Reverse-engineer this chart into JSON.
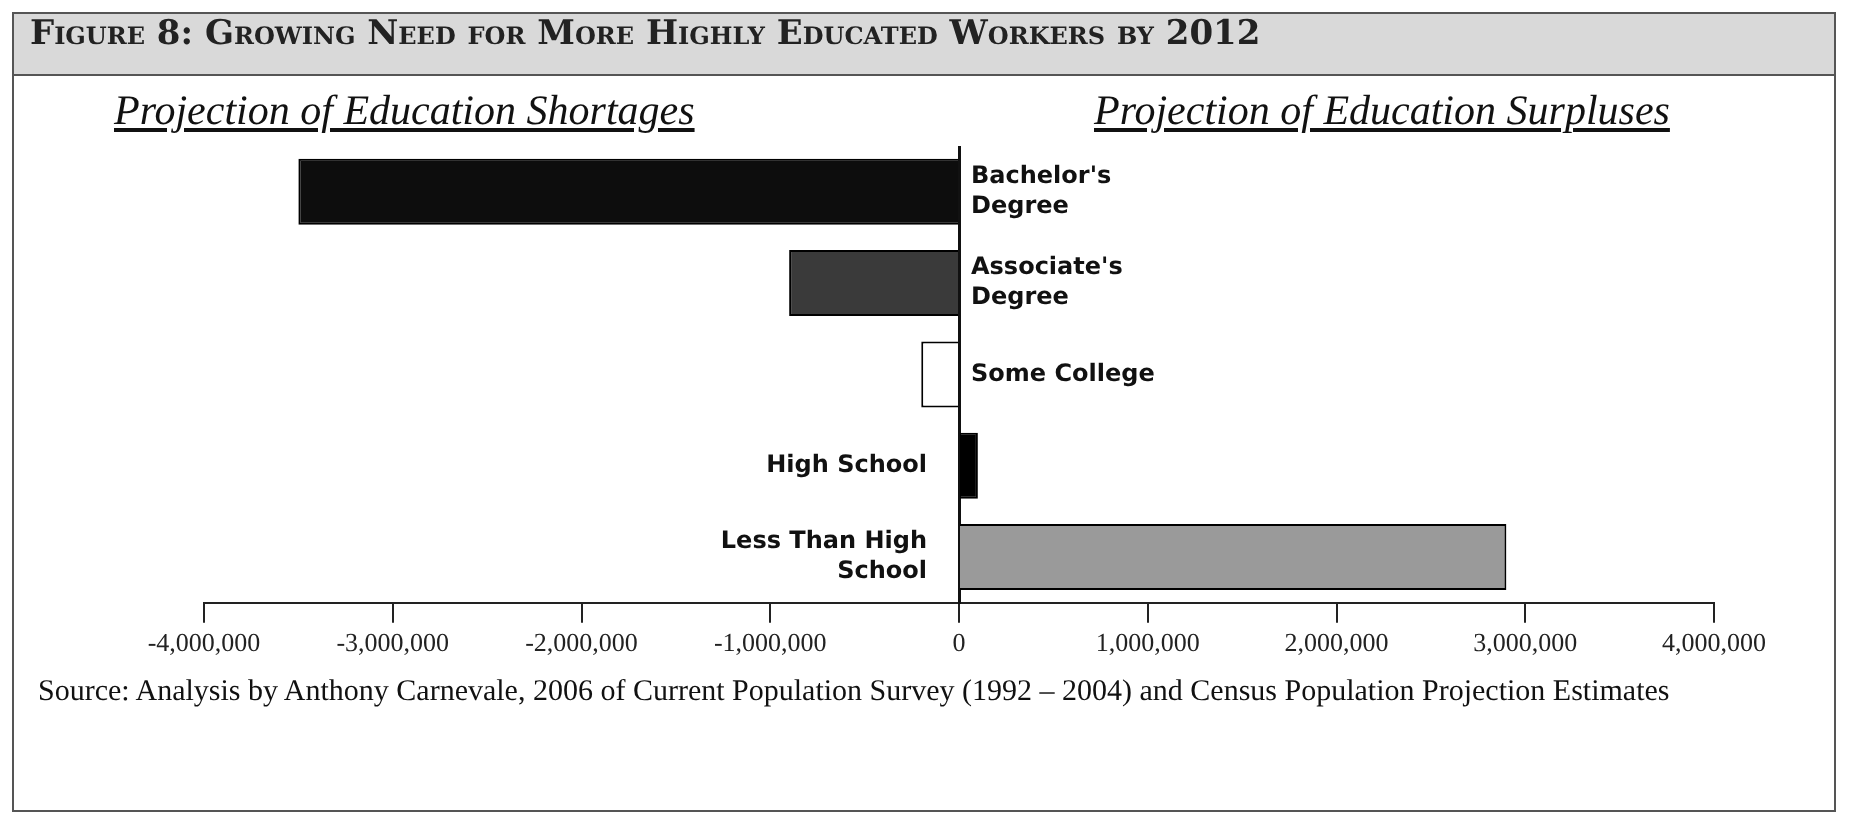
{
  "chart_data": {
    "type": "bar",
    "orientation": "horizontal",
    "title": "Figure 8: Growing Need for More Highly Educated Workers by 2012",
    "categories": [
      "Bachelor's Degree",
      "Associate's Degree",
      "Some College",
      "High School",
      "Less Than High School"
    ],
    "values": [
      -3500000,
      -900000,
      -200000,
      100000,
      2900000
    ],
    "colors": [
      "#0d0d0d",
      "#3a3a3a",
      "#ffffff",
      "#000000",
      "#9a9a9a"
    ],
    "xlim": [
      -4000000,
      4000000
    ],
    "xticks": [
      {
        "value": -4000000,
        "label": "-4,000,000"
      },
      {
        "value": -3000000,
        "label": "-3,000,000"
      },
      {
        "value": -2000000,
        "label": "-2,000,000"
      },
      {
        "value": -1000000,
        "label": "-1,000,000"
      },
      0,
      {
        "value": 1000000,
        "label": "1,000,000"
      },
      {
        "value": 2000000,
        "label": "2,000,000"
      },
      {
        "value": 3000000,
        "label": "3,000,000"
      },
      {
        "value": 4000000,
        "label": "4,000,000"
      }
    ],
    "tick_labels": "x",
    "grid": false,
    "legend": false,
    "annotations": [
      "Projection of Education Shortages",
      "Projection of Education Surpluses",
      "Source: Analysis by Anthony Carnevale, 2006 of Current Population Survey (1992 – 2004) and Census Population Projection Estimates"
    ]
  }
}
